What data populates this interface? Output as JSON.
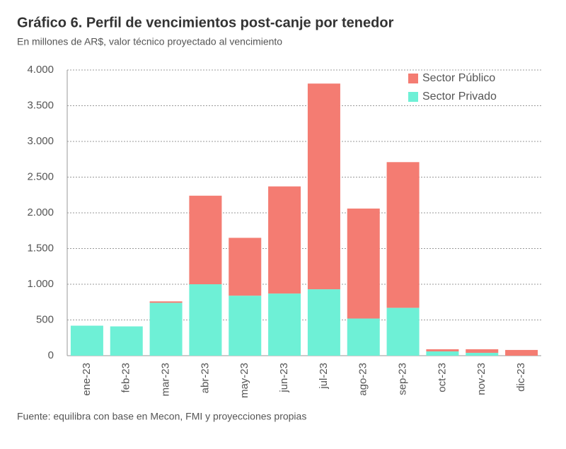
{
  "chart_data": {
    "type": "stacked-bar",
    "title": "Gráfico 6. Perfil de vencimientos post-canje por tenedor",
    "subtitle": "En millones de AR$, valor técnico proyectado al vencimiento",
    "source": "Fuente: equilibra con base en Mecon, FMI y proyecciones propias",
    "categories": [
      "ene-23",
      "feb-23",
      "mar-23",
      "abr-23",
      "may-23",
      "jun-23",
      "jul-23",
      "ago-23",
      "sep-23",
      "oct-23",
      "nov-23",
      "dic-23"
    ],
    "series": [
      {
        "name": "Sector Público",
        "color": "#f47c72",
        "values": [
          0,
          0,
          20,
          1240,
          810,
          1500,
          2880,
          1540,
          2040,
          30,
          50,
          80
        ]
      },
      {
        "name": "Sector Privado",
        "color": "#6ef0d6",
        "values": [
          420,
          410,
          740,
          1000,
          840,
          870,
          930,
          520,
          670,
          60,
          40,
          0
        ]
      }
    ],
    "ylim": [
      0,
      4000
    ],
    "yticks": [
      0,
      500,
      {
        "value": 1000,
        "label": "1.000"
      },
      {
        "value": 1500,
        "label": "1.500"
      },
      {
        "value": 2000,
        "label": "2.000"
      },
      {
        "value": 2500,
        "label": "2.500"
      },
      {
        "value": 3000,
        "label": "3.000"
      },
      {
        "value": 3500,
        "label": "3.500"
      },
      {
        "value": 4000,
        "label": "4.000"
      }
    ],
    "grid": true,
    "legend": "top-right"
  }
}
